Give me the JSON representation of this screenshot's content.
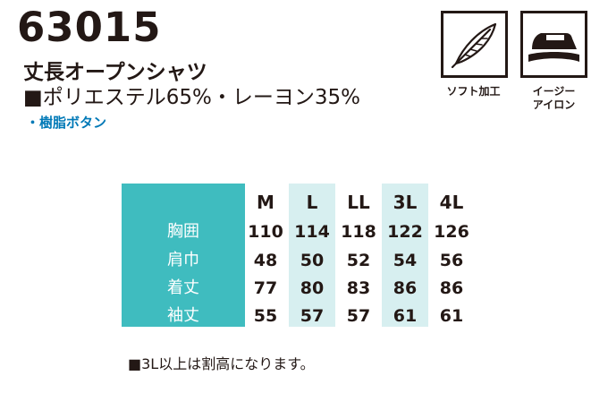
{
  "product": {
    "code": "63015",
    "name": "丈長オープンシャツ",
    "fabric": "■ポリエステル65%・レーヨン35%",
    "feature": "・樹脂ボタン"
  },
  "icons": [
    {
      "name": "feather-icon",
      "label": "ソフト加工"
    },
    {
      "name": "iron-icon",
      "label": "イージー\nアイロン"
    }
  ],
  "size_table": {
    "sizes": [
      "M",
      "L",
      "LL",
      "3L",
      "4L"
    ],
    "rows": [
      {
        "label": "胸囲",
        "values": [
          "110",
          "114",
          "118",
          "122",
          "126"
        ]
      },
      {
        "label": "肩巾",
        "values": [
          "48",
          "50",
          "52",
          "54",
          "56"
        ]
      },
      {
        "label": "着丈",
        "values": [
          "77",
          "80",
          "83",
          "86",
          "86"
        ]
      },
      {
        "label": "袖丈",
        "values": [
          "55",
          "57",
          "57",
          "61",
          "61"
        ]
      }
    ],
    "colors": {
      "header": "#3fbcbf",
      "highlight": "#d7eff0"
    }
  },
  "note": "■3L以上は割高になります。"
}
